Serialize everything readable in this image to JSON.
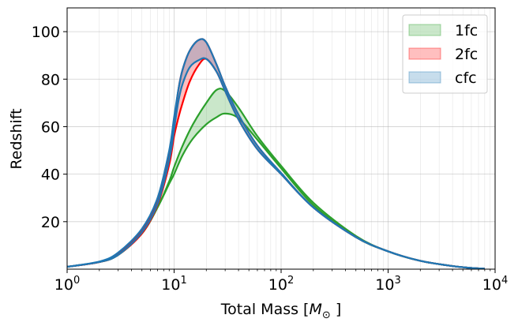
{
  "chart_data": {
    "type": "area",
    "xlabel_prefix": "Total Mass [",
    "xlabel_symbol": "M",
    "xlabel_subscript": "⊙",
    "xlabel_suffix": " ]",
    "ylabel": "Redshift",
    "xscale": "log",
    "xlim": [
      1,
      10000
    ],
    "ylim": [
      0,
      110
    ],
    "grid": true,
    "legend_position": "top-right",
    "x_ticks": [
      {
        "value": 1,
        "base": "10",
        "exp": "0"
      },
      {
        "value": 10,
        "base": "10",
        "exp": "1"
      },
      {
        "value": 100,
        "base": "10",
        "exp": "2"
      },
      {
        "value": 1000,
        "base": "10",
        "exp": "3"
      },
      {
        "value": 10000,
        "base": "10",
        "exp": "4"
      }
    ],
    "y_ticks": [
      20,
      40,
      60,
      80,
      100
    ],
    "legend": [
      {
        "label": "1fc",
        "fill": "#2ca02c"
      },
      {
        "label": "2fc",
        "fill": "#ff0000"
      },
      {
        "label": "cfc",
        "fill": "#1f77b4"
      }
    ],
    "bands": [
      {
        "name": "1fc",
        "color": "#2ca02c",
        "x": [
          1,
          2,
          3,
          5,
          7,
          9,
          10,
          12,
          15,
          20,
          25,
          30,
          40,
          60,
          100,
          200,
          500,
          1000,
          2000,
          4000,
          6000,
          8000
        ],
        "upper": [
          1,
          3,
          6,
          15,
          26,
          37,
          43,
          52,
          61,
          70,
          75.5,
          75,
          68,
          56,
          43.5,
          28,
          14,
          7.5,
          3.5,
          1.3,
          0.5,
          0.2
        ],
        "lower": [
          1,
          3,
          6,
          15,
          26,
          36,
          40,
          48,
          55,
          61,
          64,
          65.5,
          63.5,
          54.5,
          42.5,
          27,
          13.5,
          7.5,
          3.5,
          1.3,
          0.5,
          0.2
        ]
      },
      {
        "name": "2fc",
        "color": "#ff0000",
        "x": [
          1,
          2,
          3,
          5,
          7,
          9,
          10,
          11,
          12,
          14,
          17,
          20,
          25,
          30,
          40,
          60,
          100,
          200,
          500,
          1000,
          2000,
          4000,
          6000,
          8000
        ],
        "upper": [
          1,
          3,
          6.5,
          16,
          29,
          48,
          62,
          76,
          84,
          92,
          96.5,
          95.5,
          86,
          77,
          65,
          52,
          40.5,
          26,
          13.5,
          7.5,
          3.5,
          1.3,
          0.5,
          0.2
        ],
        "lower": [
          1,
          3,
          6,
          15,
          27,
          44,
          56,
          64,
          70,
          79,
          86,
          88.5,
          83,
          75,
          63,
          50.5,
          40,
          26,
          13.5,
          7.5,
          3.5,
          1.3,
          0.5,
          0.2
        ]
      },
      {
        "name": "cfc",
        "color": "#1f77b4",
        "x": [
          1,
          2,
          3,
          5,
          7,
          9,
          10,
          11,
          12,
          14,
          17,
          20,
          25,
          30,
          40,
          60,
          100,
          200,
          500,
          1000,
          2000,
          4000,
          6000,
          8000
        ],
        "upper": [
          1,
          3.2,
          7,
          17,
          30,
          50,
          64,
          76,
          84,
          92,
          96.5,
          95.5,
          86,
          77,
          65,
          52,
          40.5,
          26,
          13.5,
          7.5,
          3.5,
          1.3,
          0.5,
          0.2
        ],
        "lower": [
          1,
          3,
          6,
          15.5,
          27.5,
          46,
          59,
          71,
          78,
          85,
          88,
          88.5,
          83,
          75,
          63,
          50.5,
          40,
          26,
          13.5,
          7.5,
          3.5,
          1.3,
          0.5,
          0.2
        ]
      }
    ]
  }
}
